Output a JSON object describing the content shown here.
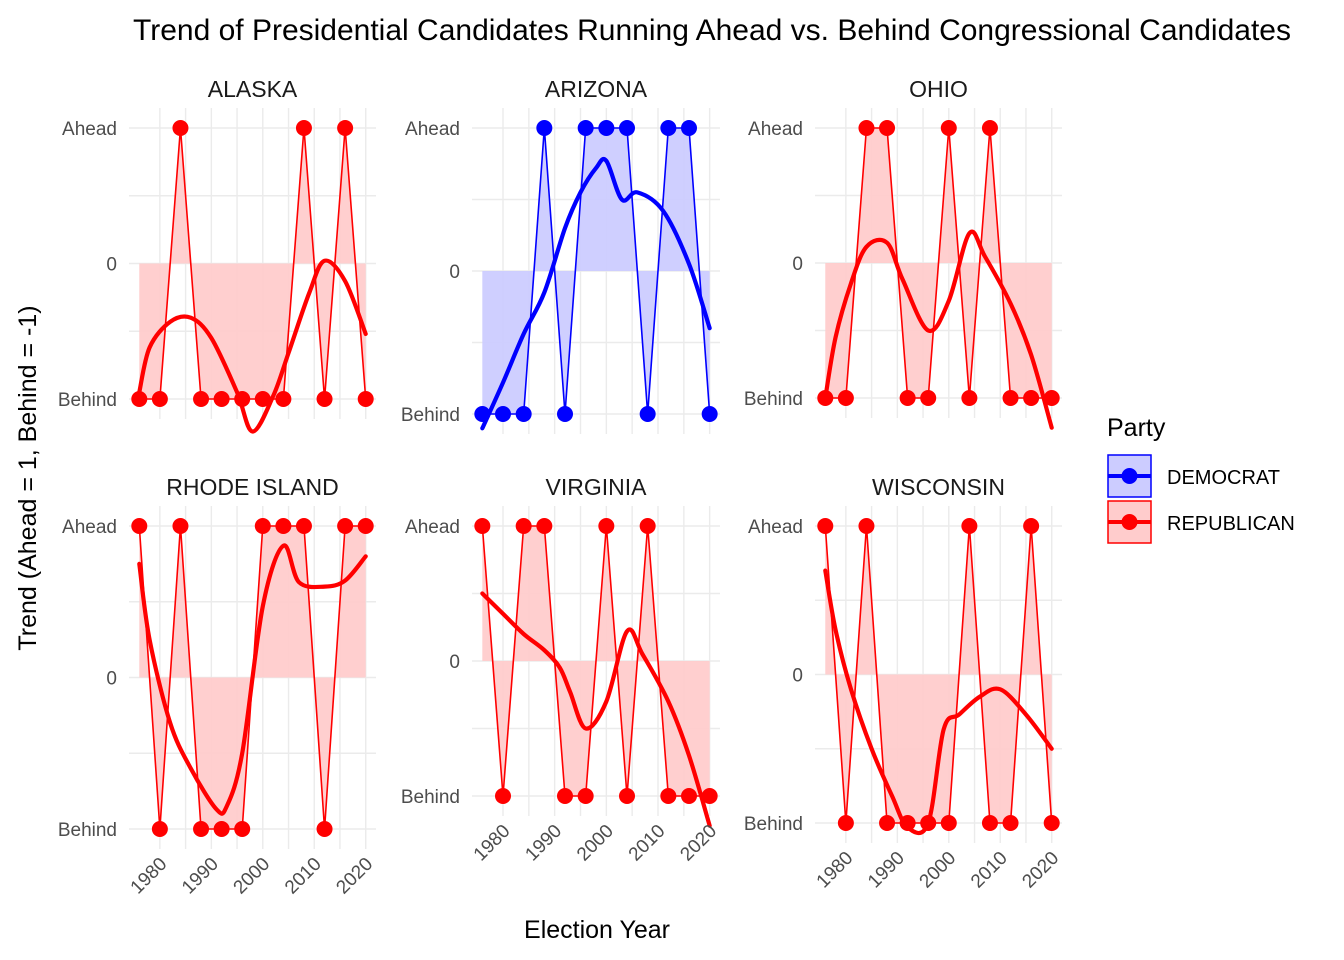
{
  "chart_data": {
    "type": "line",
    "title": "Trend of Presidential Candidates Running Ahead vs. Behind Congressional Candidates",
    "xlabel": "Election Year",
    "ylabel": "Trend (Ahead = 1, Behind = -1)",
    "x_ticks": [
      "1980",
      "1990",
      "2000",
      "2010",
      "2020"
    ],
    "y_ticks": [
      "Behind",
      "0",
      "Ahead"
    ],
    "xlim": [
      1976,
      2020
    ],
    "ylim": [
      -1,
      1
    ],
    "years": [
      1976,
      1980,
      1984,
      1988,
      1992,
      1996,
      2000,
      2004,
      2008,
      2012,
      2016,
      2020
    ],
    "legend": {
      "title": "Party",
      "position": "right",
      "entries": [
        {
          "name": "DEMOCRAT",
          "color": "#0000ff",
          "fill": "#ccccff"
        },
        {
          "name": "REPUBLICAN",
          "color": "#ff0000",
          "fill": "#ffcccc"
        }
      ]
    },
    "panels": [
      {
        "state": "ALASKA",
        "party": "REPUBLICAN",
        "values": [
          -1,
          -1,
          1,
          -1,
          -1,
          -1,
          -1,
          -1,
          1,
          -1,
          1,
          -1
        ],
        "smooth": [
          -0.95,
          -0.62,
          -0.43,
          -0.4,
          -0.55,
          -0.95,
          -1.24,
          -0.98,
          -0.66,
          -0.22,
          0.02,
          -0.13,
          -0.52
        ],
        "smooth_x": [
          1976,
          1978,
          1982,
          1986,
          1990,
          1995,
          1998,
          2002,
          2005,
          2009,
          2012,
          2016,
          2020
        ]
      },
      {
        "state": "ARIZONA",
        "party": "DEMOCRAT",
        "values": [
          -1,
          -1,
          -1,
          1,
          -1,
          1,
          1,
          1,
          -1,
          1,
          1,
          -1
        ],
        "smooth": [
          -1.1,
          -0.78,
          -0.44,
          -0.15,
          0.3,
          0.55,
          0.72,
          0.77,
          0.5,
          0.55,
          0.42,
          0.05,
          -0.4
        ],
        "smooth_x": [
          1976,
          1980,
          1984,
          1988,
          1992,
          1995,
          1998,
          2000,
          2003,
          2006,
          2011,
          2016,
          2020
        ]
      },
      {
        "state": "OHIO",
        "party": "REPUBLICAN",
        "values": [
          -1,
          -1,
          1,
          1,
          -1,
          -1,
          1,
          -1,
          1,
          -1,
          -1,
          -1
        ],
        "smooth": [
          -1.0,
          -0.55,
          -0.15,
          0.12,
          0.15,
          -0.12,
          -0.5,
          -0.28,
          0.22,
          0.05,
          -0.3,
          -0.68,
          -1.22
        ],
        "smooth_x": [
          1976,
          1978,
          1981,
          1984,
          1988,
          1991,
          1996,
          2000,
          2004,
          2007,
          2012,
          2016,
          2020
        ]
      },
      {
        "state": "RHODE ISLAND",
        "party": "REPUBLICAN",
        "values": [
          1,
          -1,
          1,
          -1,
          -1,
          -1,
          1,
          1,
          1,
          -1,
          1,
          1
        ],
        "smooth": [
          0.75,
          0.25,
          -0.3,
          -0.6,
          -0.87,
          -0.85,
          -0.5,
          0.47,
          0.87,
          0.63,
          0.6,
          0.64,
          0.8
        ],
        "smooth_x": [
          1976,
          1978,
          1982,
          1986,
          1991,
          1993,
          1996,
          2000,
          2004,
          2007,
          2012,
          2016,
          2020
        ]
      },
      {
        "state": "VIRGINIA",
        "party": "REPUBLICAN",
        "values": [
          1,
          -1,
          1,
          1,
          -1,
          -1,
          1,
          -1,
          1,
          -1,
          -1,
          -1
        ],
        "smooth": [
          0.5,
          0.35,
          0.2,
          0.08,
          -0.05,
          -0.23,
          -0.5,
          -0.3,
          0.22,
          0.05,
          -0.3,
          -0.7,
          -1.22
        ],
        "smooth_x": [
          1976,
          1980,
          1984,
          1988,
          1991,
          1993,
          1996,
          2000,
          2004,
          2007,
          2012,
          2016,
          2020
        ]
      },
      {
        "state": "WISCONSIN",
        "party": "REPUBLICAN",
        "values": [
          1,
          -1,
          1,
          -1,
          -1,
          -1,
          -1,
          1,
          -1,
          -1,
          1,
          -1
        ],
        "smooth": [
          0.7,
          0.3,
          -0.1,
          -0.5,
          -0.82,
          -1.03,
          -1.0,
          -0.37,
          -0.27,
          -0.15,
          -0.1,
          -0.27,
          -0.5
        ],
        "smooth_x": [
          1976,
          1978,
          1981,
          1985,
          1989,
          1992,
          1996,
          1999,
          2002,
          2006,
          2010,
          2015,
          2020
        ]
      }
    ]
  }
}
